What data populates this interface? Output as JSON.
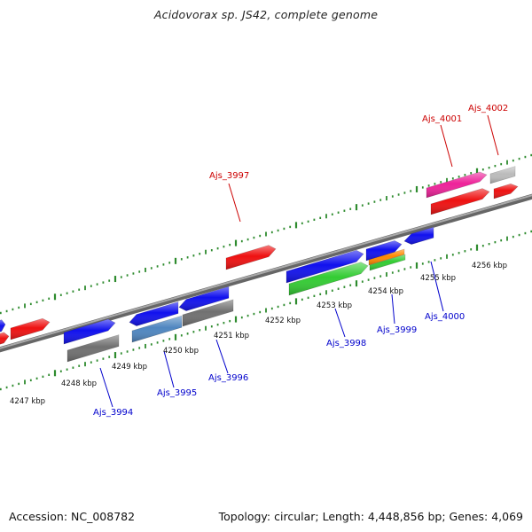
{
  "title": "Acidovorax sp. JS42, complete genome",
  "footer": {
    "accession": "Accession: NC_008782",
    "stats": "Topology: circular; Length: 4,448,856 bp; Genes: 4,069"
  },
  "colors": {
    "red": "#ee1111",
    "blue": "#1111ee",
    "gray": "#707070",
    "steelblue": "#4f86c0",
    "green": "#33cc33",
    "magenta": "#ee2299",
    "lightgray": "#bbbbbb",
    "orange": "#ff8800",
    "tick": "#2e8b2e",
    "backbone": "#888888",
    "label_red": "#cc0000",
    "label_blue": "#0000cc"
  },
  "map": {
    "scale_labels": [
      "4247 kbp",
      "4248 kbp",
      "4249 kbp",
      "4250 kbp",
      "4251 kbp",
      "4252 kbp",
      "4253 kbp",
      "4254 kbp",
      "4255 kbp",
      "4256 kbp"
    ],
    "gene_labels": [
      {
        "text": "Ajs_3997",
        "strand": "forward"
      },
      {
        "text": "Ajs_4001",
        "strand": "forward"
      },
      {
        "text": "Ajs_4002",
        "strand": "forward"
      },
      {
        "text": "Ajs_3994",
        "strand": "reverse"
      },
      {
        "text": "Ajs_3995",
        "strand": "reverse"
      },
      {
        "text": "Ajs_3996",
        "strand": "reverse"
      },
      {
        "text": "Ajs_3998",
        "strand": "reverse"
      },
      {
        "text": "Ajs_3999",
        "strand": "reverse"
      },
      {
        "text": "Ajs_4000",
        "strand": "reverse"
      }
    ]
  }
}
